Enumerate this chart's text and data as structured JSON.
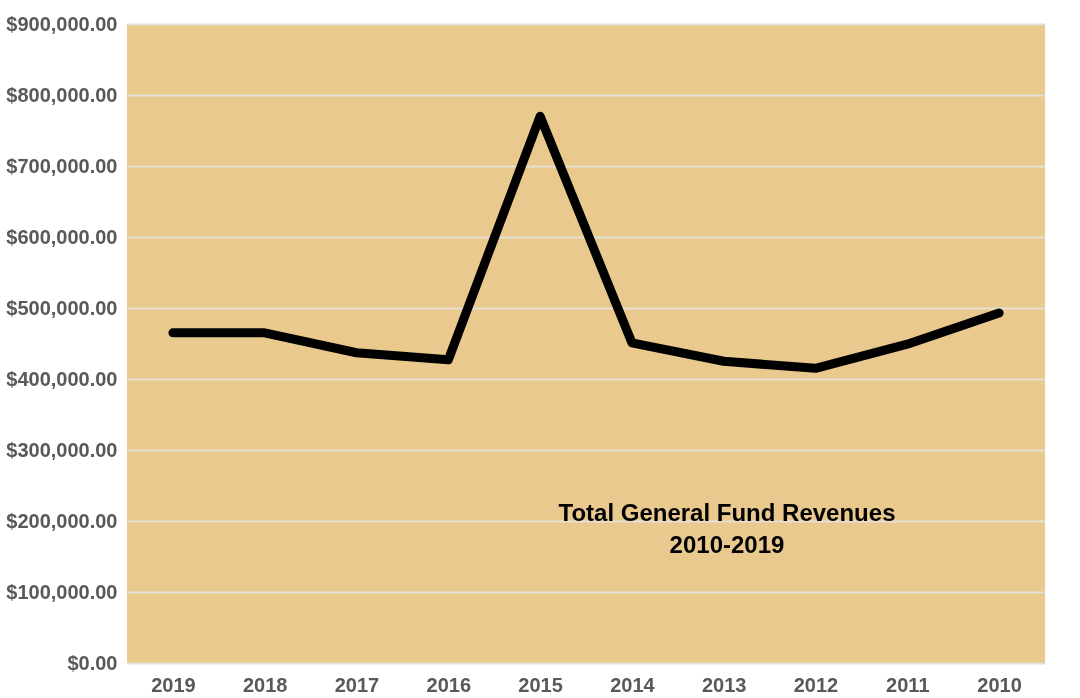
{
  "chart_data": {
    "type": "line",
    "title": "Total General Fund Revenues\n2010-2019",
    "categories": [
      "2019",
      "2018",
      "2017",
      "2016",
      "2015",
      "2014",
      "2013",
      "2012",
      "2011",
      "2010"
    ],
    "series": [
      {
        "color": "#000000",
        "values": [
          465000,
          465000,
          437000,
          427000,
          770000,
          451000,
          425000,
          415000,
          449000,
          493000
        ]
      }
    ],
    "ylim": [
      0,
      900000
    ],
    "yticks": [
      {
        "value": 0,
        "label": "$0.00"
      },
      {
        "value": 100000,
        "label": "$100,000.00"
      },
      {
        "value": 200000,
        "label": "$200,000.00"
      },
      {
        "value": 300000,
        "label": "$300,000.00"
      },
      {
        "value": 400000,
        "label": "$400,000.00"
      },
      {
        "value": 500000,
        "label": "$500,000.00"
      },
      {
        "value": 600000,
        "label": "$600,000.00"
      },
      {
        "value": 700000,
        "label": "$700,000.00"
      },
      {
        "value": 800000,
        "label": "$800,000.00"
      },
      {
        "value": 900000,
        "label": "$900,000.00"
      }
    ],
    "grid": "y",
    "marker": "none",
    "line_style": "solid"
  }
}
